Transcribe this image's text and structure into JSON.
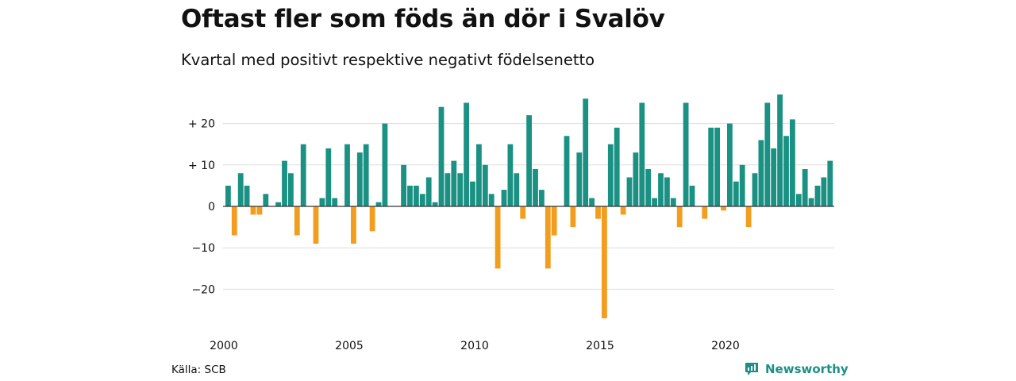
{
  "title": "Oftast fler som föds än dör i Svalöv",
  "subtitle": "Kvartal med positivt respektive negativt födelsenetto",
  "source": "Källa: SCB",
  "brand": "Newsworthy",
  "colors": {
    "positive": "#1a9183",
    "negative": "#f29d1e",
    "grid": "#dddddd",
    "brand": "#1f8f85"
  },
  "chart_data": {
    "type": "bar",
    "title": "Oftast fler som föds än dör i Svalöv",
    "subtitle": "Kvartal med positivt respektive negativt födelsenetto",
    "x_unit": "quarter",
    "x_start": "2000 Q1",
    "x_end": "2024 Q2",
    "x_ticks": [
      "2000",
      "2005",
      "2010",
      "2015",
      "2020"
    ],
    "y_ticks": [
      20,
      10,
      0,
      -10,
      -20
    ],
    "y_tick_labels": [
      "+ 20",
      "+ 10",
      "0",
      "−10",
      "−20"
    ],
    "ylim": [
      -28,
      28
    ],
    "grid": true,
    "categories": [
      "2000 Q1",
      "2000 Q2",
      "2000 Q3",
      "2000 Q4",
      "2001 Q1",
      "2001 Q2",
      "2001 Q3",
      "2001 Q4",
      "2002 Q1",
      "2002 Q2",
      "2002 Q3",
      "2002 Q4",
      "2003 Q1",
      "2003 Q2",
      "2003 Q3",
      "2003 Q4",
      "2004 Q1",
      "2004 Q2",
      "2004 Q3",
      "2004 Q4",
      "2005 Q1",
      "2005 Q2",
      "2005 Q3",
      "2005 Q4",
      "2006 Q1",
      "2006 Q2",
      "2006 Q3",
      "2006 Q4",
      "2007 Q1",
      "2007 Q2",
      "2007 Q3",
      "2007 Q4",
      "2008 Q1",
      "2008 Q2",
      "2008 Q3",
      "2008 Q4",
      "2009 Q1",
      "2009 Q2",
      "2009 Q3",
      "2009 Q4",
      "2010 Q1",
      "2010 Q2",
      "2010 Q3",
      "2010 Q4",
      "2011 Q1",
      "2011 Q2",
      "2011 Q3",
      "2011 Q4",
      "2012 Q1",
      "2012 Q2",
      "2012 Q3",
      "2012 Q4",
      "2013 Q1",
      "2013 Q2",
      "2013 Q3",
      "2013 Q4",
      "2014 Q1",
      "2014 Q2",
      "2014 Q3",
      "2014 Q4",
      "2015 Q1",
      "2015 Q2",
      "2015 Q3",
      "2015 Q4",
      "2016 Q1",
      "2016 Q2",
      "2016 Q3",
      "2016 Q4",
      "2017 Q1",
      "2017 Q2",
      "2017 Q3",
      "2017 Q4",
      "2018 Q1",
      "2018 Q2",
      "2018 Q3",
      "2018 Q4",
      "2019 Q1",
      "2019 Q2",
      "2019 Q3",
      "2019 Q4",
      "2020 Q1",
      "2020 Q2",
      "2020 Q3",
      "2020 Q4",
      "2021 Q1",
      "2021 Q2",
      "2021 Q3",
      "2021 Q4",
      "2022 Q1",
      "2022 Q2",
      "2022 Q3",
      "2022 Q4",
      "2023 Q1",
      "2023 Q2",
      "2023 Q3",
      "2023 Q4",
      "2024 Q1",
      "2024 Q2"
    ],
    "values": [
      5,
      -7,
      8,
      5,
      -2,
      -2,
      3,
      0,
      1,
      11,
      8,
      -7,
      15,
      0,
      -9,
      2,
      14,
      2,
      0,
      15,
      -9,
      13,
      15,
      -6,
      1,
      20,
      0,
      0,
      10,
      5,
      5,
      3,
      7,
      1,
      24,
      8,
      11,
      8,
      25,
      6,
      15,
      10,
      3,
      -15,
      4,
      15,
      8,
      -3,
      22,
      9,
      4,
      -15,
      -7,
      0,
      17,
      -5,
      13,
      26,
      2,
      -3,
      -27,
      15,
      19,
      -2,
      7,
      13,
      25,
      9,
      2,
      8,
      7,
      2,
      -5,
      25,
      5,
      0,
      -3,
      19,
      19,
      -1,
      20,
      6,
      10,
      -5,
      8,
      16,
      25,
      14,
      27,
      17,
      21,
      3,
      9,
      2,
      5,
      7,
      11,
      0
    ]
  }
}
